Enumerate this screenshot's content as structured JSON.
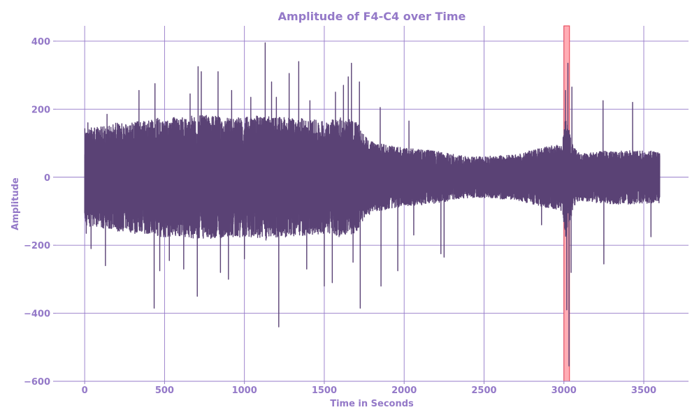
{
  "chart_data": {
    "type": "line",
    "title": "Amplitude of F4-C4 over Time",
    "xlabel": "Time in Seconds",
    "ylabel": "Amplitude",
    "xlim": [
      -180,
      3780
    ],
    "ylim": [
      -600,
      445
    ],
    "xticks": [
      0,
      500,
      1000,
      1500,
      2000,
      2500,
      3000,
      3500
    ],
    "yticks": [
      -600,
      -400,
      -200,
      0,
      200,
      400
    ],
    "xtick_labels": [
      "0",
      "500",
      "1000",
      "1500",
      "2000",
      "2500",
      "3000",
      "3500"
    ],
    "ytick_labels": [
      "−600",
      "−400",
      "−200",
      "0",
      "200",
      "400"
    ],
    "grid": true,
    "colors": {
      "line": "#5a4275",
      "grid": "#9479c8",
      "text": "#9479c8",
      "highlight_fill": "#ffadb5",
      "highlight_edge": "#e8404f"
    },
    "highlight_region": {
      "x_start": 3000,
      "x_end": 3035
    },
    "series": [
      {
        "x_range": [
          0,
          3600
        ],
        "envelope": [
          [
            0,
            130
          ],
          [
            100,
            135
          ],
          [
            200,
            145
          ],
          [
            300,
            150
          ],
          [
            400,
            155
          ],
          [
            500,
            160
          ],
          [
            600,
            160
          ],
          [
            700,
            165
          ],
          [
            800,
            165
          ],
          [
            900,
            160
          ],
          [
            1000,
            160
          ],
          [
            1100,
            165
          ],
          [
            1200,
            160
          ],
          [
            1300,
            160
          ],
          [
            1400,
            155
          ],
          [
            1500,
            150
          ],
          [
            1600,
            160
          ],
          [
            1700,
            150
          ],
          [
            1750,
            110
          ],
          [
            1800,
            95
          ],
          [
            1900,
            85
          ],
          [
            2000,
            78
          ],
          [
            2100,
            75
          ],
          [
            2200,
            70
          ],
          [
            2300,
            62
          ],
          [
            2400,
            55
          ],
          [
            2500,
            55
          ],
          [
            2600,
            58
          ],
          [
            2700,
            60
          ],
          [
            2800,
            72
          ],
          [
            2900,
            82
          ],
          [
            2990,
            90
          ],
          [
            3010,
            160
          ],
          [
            3040,
            120
          ],
          [
            3060,
            80
          ],
          [
            3100,
            62
          ],
          [
            3200,
            68
          ],
          [
            3300,
            72
          ],
          [
            3400,
            72
          ],
          [
            3500,
            70
          ],
          [
            3600,
            70
          ]
        ],
        "peaks": [
          [
            5,
            100
          ],
          [
            10,
            -165
          ],
          [
            20,
            160
          ],
          [
            40,
            -210
          ],
          [
            130,
            -260
          ],
          [
            140,
            185
          ],
          [
            340,
            255
          ],
          [
            435,
            -385
          ],
          [
            440,
            275
          ],
          [
            470,
            -275
          ],
          [
            530,
            -245
          ],
          [
            620,
            -270
          ],
          [
            660,
            245
          ],
          [
            705,
            -350
          ],
          [
            710,
            325
          ],
          [
            730,
            310
          ],
          [
            835,
            310
          ],
          [
            850,
            -280
          ],
          [
            900,
            -300
          ],
          [
            920,
            255
          ],
          [
            1000,
            -240
          ],
          [
            1040,
            235
          ],
          [
            1130,
            395
          ],
          [
            1135,
            -185
          ],
          [
            1170,
            280
          ],
          [
            1200,
            235
          ],
          [
            1215,
            -440
          ],
          [
            1280,
            305
          ],
          [
            1340,
            340
          ],
          [
            1390,
            -270
          ],
          [
            1410,
            225
          ],
          [
            1500,
            -320
          ],
          [
            1550,
            -310
          ],
          [
            1570,
            250
          ],
          [
            1620,
            270
          ],
          [
            1650,
            295
          ],
          [
            1670,
            335
          ],
          [
            1680,
            -250
          ],
          [
            1720,
            280
          ],
          [
            1725,
            -385
          ],
          [
            1850,
            205
          ],
          [
            1855,
            -320
          ],
          [
            1960,
            -275
          ],
          [
            2030,
            165
          ],
          [
            2060,
            -170
          ],
          [
            2230,
            -225
          ],
          [
            2250,
            -235
          ],
          [
            2860,
            -140
          ],
          [
            3010,
            255
          ],
          [
            3018,
            -390
          ],
          [
            3025,
            335
          ],
          [
            3032,
            -555
          ],
          [
            3045,
            -280
          ],
          [
            3050,
            265
          ],
          [
            3245,
            225
          ],
          [
            3250,
            -255
          ],
          [
            3430,
            220
          ],
          [
            3545,
            -175
          ]
        ]
      }
    ]
  }
}
